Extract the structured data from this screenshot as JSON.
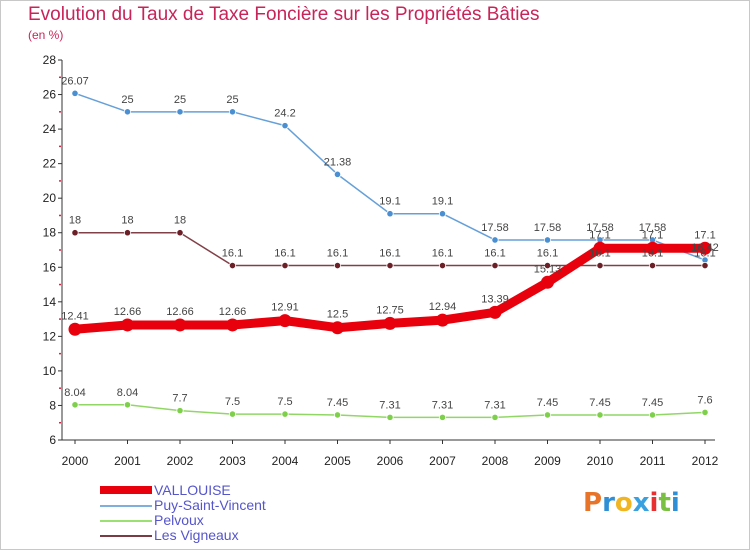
{
  "header": {
    "title": "Evolution du Taux de Taxe Foncière sur les Propriétés Bâties",
    "unit": "(en %)"
  },
  "chart_data": {
    "type": "line",
    "title": "Evolution du Taux de Taxe Foncière sur les Propriétés Bâties",
    "ylabel": "(en %)",
    "xlabel": "",
    "x": [
      "2000",
      "2001",
      "2002",
      "2003",
      "2004",
      "2005",
      "2006",
      "2007",
      "2008",
      "2009",
      "2010",
      "2011",
      "2012"
    ],
    "ylim": [
      6,
      28
    ],
    "yticks": [
      6,
      8,
      10,
      12,
      14,
      16,
      18,
      20,
      22,
      24,
      26,
      28
    ],
    "grid": false,
    "legend": "bottom-left",
    "series": [
      {
        "name": "Puy-Saint-Vincent",
        "color": "#4a8fd1",
        "values": [
          26.07,
          25,
          25,
          25,
          24.2,
          21.38,
          19.1,
          19.1,
          17.58,
          17.58,
          17.58,
          17.58,
          16.42
        ],
        "labels": [
          "26.07",
          "25",
          "25",
          "25",
          "24.2",
          "21.38",
          "19.1",
          "19.1",
          "17.58",
          "17.58",
          "17.58",
          "17.58",
          "16.42"
        ]
      },
      {
        "name": "Les Vigneaux",
        "color": "#6b1f27",
        "values": [
          18,
          18,
          18,
          16.1,
          16.1,
          16.1,
          16.1,
          16.1,
          16.1,
          16.1,
          16.1,
          16.1,
          16.1
        ],
        "labels": [
          "18",
          "18",
          "18",
          "16.1",
          "16.1",
          "16.1",
          "16.1",
          "16.1",
          "16.1",
          "16.1",
          "16.1",
          "16.1",
          "16.1"
        ]
      },
      {
        "name": "Pelvoux",
        "color": "#7ed04b",
        "values": [
          8.04,
          8.04,
          7.7,
          7.5,
          7.5,
          7.45,
          7.31,
          7.31,
          7.31,
          7.45,
          7.45,
          7.45,
          7.6
        ],
        "labels": [
          "8.04",
          "8.04",
          "7.7",
          "7.5",
          "7.5",
          "7.45",
          "7.31",
          "7.31",
          "7.31",
          "7.45",
          "7.45",
          "7.45",
          "7.6"
        ]
      },
      {
        "name": "VALLOUISE",
        "color": "#e8000c",
        "values": [
          12.41,
          12.66,
          12.66,
          12.66,
          12.91,
          12.5,
          12.75,
          12.94,
          13.39,
          15.13,
          17.1,
          17.1,
          17.1
        ],
        "labels": [
          "12.41",
          "12.66",
          "12.66",
          "12.66",
          "12.91",
          "12.5",
          "12.75",
          "12.94",
          "13.39",
          "15.13",
          "17.1",
          "17.1",
          "17.1"
        ]
      }
    ]
  },
  "legend": {
    "items": [
      {
        "label": "VALLOUISE",
        "color": "#e8000c"
      },
      {
        "label": "Puy-Saint-Vincent",
        "color": "#7fb0dd"
      },
      {
        "label": "Pelvoux",
        "color": "#9be070"
      },
      {
        "label": "Les Vigneaux",
        "color": "#7a3b42"
      }
    ]
  },
  "logo": {
    "letters": [
      "P",
      "r",
      "o",
      "x",
      "i",
      "t",
      "i"
    ],
    "colors": [
      "#e8742a",
      "#2f8fd6",
      "#f0b520",
      "#3aa1e0",
      "#e83030",
      "#7ac143",
      "#2f8fd6"
    ]
  }
}
